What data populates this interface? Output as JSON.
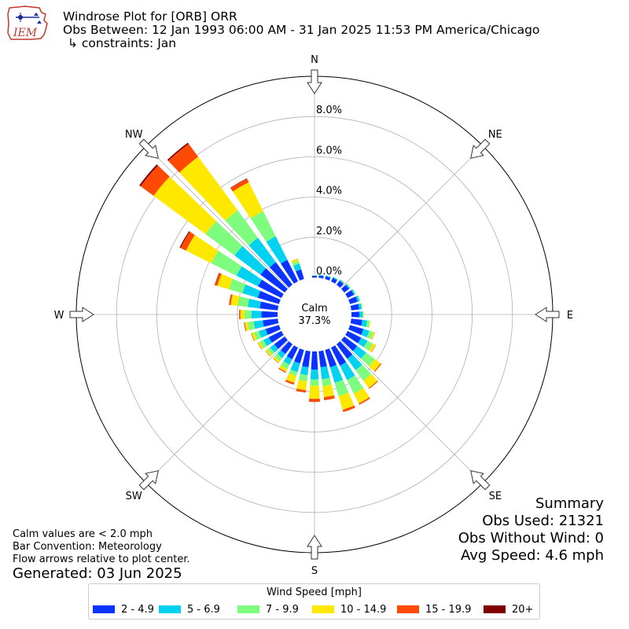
{
  "header": {
    "logo_text": "IEM",
    "title": "Windrose Plot for [ORB] ORR",
    "subtitle": "Obs Between: 12 Jan 1993 06:00 AM - 31 Jan 2025 11:53 PM America/Chicago",
    "constraints": "↳ constraints: Jan"
  },
  "summary": {
    "heading": "Summary",
    "obs_used": "Obs Used: 21321",
    "obs_without_wind": "Obs Without Wind: 0",
    "avg_speed": "Avg Speed: 4.6 mph"
  },
  "notes": {
    "calm_def": "Calm values are < 2.0 mph",
    "convention": "Bar Convention: Meteorology",
    "arrows": "Flow arrows relative to plot center.",
    "generated": "Generated: 03 Jun 2025"
  },
  "legend": {
    "title": "Wind Speed [mph]",
    "items": [
      {
        "label": "2 - 4.9",
        "color": "#0a33ff"
      },
      {
        "label": "5 - 6.9",
        "color": "#00d2f0"
      },
      {
        "label": "7 - 9.9",
        "color": "#7dfc7d"
      },
      {
        "label": "10 - 14.9",
        "color": "#ffe800"
      },
      {
        "label": "15 - 19.9",
        "color": "#ff4a06"
      },
      {
        "label": "20+",
        "color": "#800000"
      }
    ]
  },
  "chart_data": {
    "type": "windrose",
    "calm_label": "Calm",
    "calm_value": "37.3%",
    "radial_ticks": [
      "0.0%",
      "2.0%",
      "4.0%",
      "6.0%",
      "8.0%"
    ],
    "radial_tick_values": [
      0,
      2,
      4,
      6,
      8
    ],
    "rmax": 10,
    "compass": [
      "N",
      "NE",
      "E",
      "SE",
      "S",
      "SW",
      "W",
      "NW"
    ],
    "bins": [
      "2 - 4.9",
      "5 - 6.9",
      "7 - 9.9",
      "10 - 14.9",
      "15 - 19.9",
      "20+"
    ],
    "directions": [
      0,
      10,
      20,
      30,
      40,
      50,
      60,
      70,
      80,
      90,
      100,
      110,
      120,
      130,
      140,
      150,
      160,
      170,
      180,
      190,
      200,
      210,
      220,
      230,
      240,
      250,
      260,
      270,
      280,
      290,
      300,
      310,
      320,
      330,
      340
    ],
    "values": [
      [
        0.08,
        0.02,
        0.01,
        0.0,
        0.0,
        0.0
      ],
      [
        0.12,
        0.03,
        0.01,
        0.0,
        0.0,
        0.0
      ],
      [
        0.15,
        0.04,
        0.01,
        0.0,
        0.0,
        0.0
      ],
      [
        0.2,
        0.05,
        0.01,
        0.0,
        0.0,
        0.0
      ],
      [
        0.25,
        0.06,
        0.02,
        0.01,
        0.0,
        0.0
      ],
      [
        0.3,
        0.07,
        0.02,
        0.01,
        0.0,
        0.0
      ],
      [
        0.35,
        0.08,
        0.02,
        0.01,
        0.0,
        0.0
      ],
      [
        0.4,
        0.1,
        0.03,
        0.01,
        0.0,
        0.0
      ],
      [
        0.4,
        0.12,
        0.04,
        0.01,
        0.0,
        0.0
      ],
      [
        0.4,
        0.15,
        0.05,
        0.02,
        0.0,
        0.0
      ],
      [
        0.55,
        0.25,
        0.12,
        0.04,
        0.0,
        0.0
      ],
      [
        0.7,
        0.3,
        0.2,
        0.08,
        0.01,
        0.0
      ],
      [
        0.75,
        0.35,
        0.3,
        0.15,
        0.02,
        0.0
      ],
      [
        0.8,
        0.55,
        0.55,
        0.35,
        0.05,
        0.0
      ],
      [
        0.9,
        0.7,
        0.65,
        0.45,
        0.05,
        0.0
      ],
      [
        1.0,
        0.8,
        0.75,
        0.55,
        0.07,
        0.0
      ],
      [
        0.9,
        0.8,
        0.7,
        0.7,
        0.12,
        0.0
      ],
      [
        0.8,
        0.6,
        0.35,
        0.55,
        0.15,
        0.0
      ],
      [
        0.9,
        0.5,
        0.3,
        0.65,
        0.15,
        0.01
      ],
      [
        0.8,
        0.4,
        0.3,
        0.45,
        0.12,
        0.0
      ],
      [
        0.7,
        0.45,
        0.2,
        0.35,
        0.1,
        0.0
      ],
      [
        0.65,
        0.3,
        0.25,
        0.15,
        0.05,
        0.0
      ],
      [
        0.6,
        0.25,
        0.2,
        0.1,
        0.02,
        0.0
      ],
      [
        0.65,
        0.25,
        0.18,
        0.1,
        0.02,
        0.0
      ],
      [
        0.7,
        0.3,
        0.2,
        0.1,
        0.02,
        0.0
      ],
      [
        0.7,
        0.35,
        0.25,
        0.12,
        0.03,
        0.0
      ],
      [
        0.75,
        0.45,
        0.3,
        0.15,
        0.04,
        0.0
      ],
      [
        0.8,
        0.5,
        0.35,
        0.2,
        0.05,
        0.01
      ],
      [
        0.9,
        0.6,
        0.5,
        0.35,
        0.08,
        0.01
      ],
      [
        1.1,
        0.8,
        0.7,
        0.6,
        0.12,
        0.02
      ],
      [
        1.3,
        1.2,
        1.4,
        1.4,
        0.3,
        0.05
      ],
      [
        1.5,
        1.6,
        1.8,
        3.2,
        0.8,
        0.08
      ],
      [
        1.4,
        1.5,
        1.7,
        3.3,
        0.8,
        0.07
      ],
      [
        1.2,
        1.3,
        1.4,
        1.6,
        0.2,
        0.02
      ],
      [
        0.5,
        0.3,
        0.15,
        0.1,
        0.01,
        0.0
      ]
    ]
  }
}
